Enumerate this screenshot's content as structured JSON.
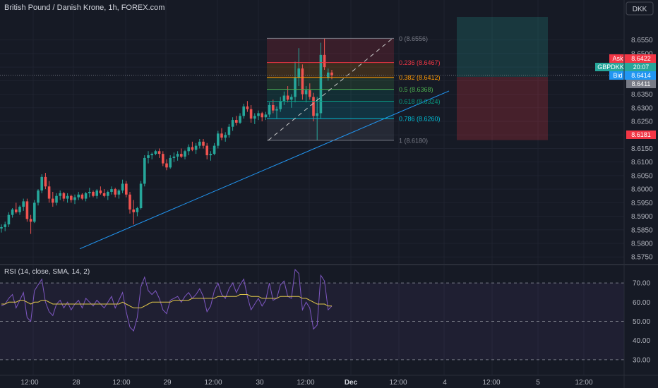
{
  "header": {
    "title": "British Pound / Danish Krone, 1h, FOREX.com"
  },
  "currency_button": "DKK",
  "price_axis": {
    "ticks": [
      "8.6550",
      "8.6500",
      "8.6450",
      "8.6400",
      "8.6350",
      "8.6300",
      "8.6250",
      "8.6200",
      "8.6150",
      "8.6100",
      "8.6050",
      "8.6000",
      "8.5950",
      "8.5900",
      "8.5850",
      "8.5800",
      "8.5750"
    ],
    "tick_values": [
      8.655,
      8.65,
      8.645,
      8.64,
      8.635,
      8.63,
      8.625,
      8.62,
      8.615,
      8.61,
      8.605,
      8.6,
      8.595,
      8.59,
      8.585,
      8.58,
      8.575
    ],
    "ylim": [
      8.5735,
      8.6635
    ]
  },
  "labels": {
    "ask": {
      "text": "Ask",
      "value": "8.6422",
      "color": "#f23645"
    },
    "symbol": {
      "text": "GBPDKK",
      "value": "20:07",
      "color": "#26a69a"
    },
    "bid": {
      "text": "Bid",
      "value": "8.6414",
      "color": "#2196f3"
    },
    "last": {
      "value": "8.6411",
      "color": "#787b86"
    },
    "stop": {
      "value": "8.6181",
      "color": "#f23645"
    }
  },
  "fib": {
    "levels": [
      {
        "ratio": "0",
        "price": 8.6556,
        "label": "0 (8.6556)",
        "color": "#787b86"
      },
      {
        "ratio": "0.236",
        "price": 8.6467,
        "label": "0.236 (8.6467)",
        "color": "#f23645"
      },
      {
        "ratio": "0.382",
        "price": 8.6412,
        "label": "0.382 (8.6412)",
        "color": "#ff9800"
      },
      {
        "ratio": "0.5",
        "price": 8.6368,
        "label": "0.5 (8.6368)",
        "color": "#4caf50"
      },
      {
        "ratio": "0.618",
        "price": 8.6324,
        "label": "0.618 (8.6324)",
        "color": "#089981"
      },
      {
        "ratio": "0.786",
        "price": 8.626,
        "label": "0.786 (8.6260)",
        "color": "#00bcd4"
      },
      {
        "ratio": "1",
        "price": 8.618,
        "label": "1 (8.6180)",
        "color": "#787b86"
      }
    ]
  },
  "position": {
    "entry": 8.6414,
    "target": 8.6635,
    "stop": 8.6181,
    "profit_color": "#26a69a",
    "loss_color": "#f23645"
  },
  "rsi": {
    "title": "RSI (14, close, SMA, 14, 2)",
    "ticks": [
      "70.00",
      "60.00",
      "50.00",
      "40.00",
      "30.00"
    ],
    "tick_values": [
      70,
      60,
      50,
      40,
      30
    ],
    "ylim": [
      27,
      73
    ]
  },
  "time_axis": {
    "labels": [
      "12:00",
      "28",
      "12:00",
      "29",
      "12:00",
      "30",
      "12:00",
      "Dec",
      "12:00",
      "4",
      "12:00",
      "5",
      "12:00"
    ],
    "bold": [
      false,
      false,
      false,
      false,
      false,
      false,
      false,
      true,
      false,
      false,
      false,
      false,
      false
    ]
  },
  "colors": {
    "up": "#26a69a",
    "down": "#ef5350",
    "trendline": "#2196f3",
    "rsi": "#7e57c2",
    "rsi_ma": "#e2c84a",
    "background": "#161a25",
    "grid": "#1e222d"
  },
  "chart_data": {
    "type": "candlestick",
    "title": "British Pound / Danish Krone, 1h, FOREX.com",
    "ylim": [
      8.5735,
      8.6635
    ],
    "candles": [
      {
        "o": 8.5855,
        "h": 8.587,
        "l": 8.584,
        "c": 8.586
      },
      {
        "o": 8.586,
        "h": 8.588,
        "l": 8.5845,
        "c": 8.587
      },
      {
        "o": 8.587,
        "h": 8.5915,
        "l": 8.586,
        "c": 8.5905
      },
      {
        "o": 8.5905,
        "h": 8.593,
        "l": 8.5895,
        "c": 8.5925
      },
      {
        "o": 8.5925,
        "h": 8.595,
        "l": 8.591,
        "c": 8.5915
      },
      {
        "o": 8.5915,
        "h": 8.594,
        "l": 8.5905,
        "c": 8.5935
      },
      {
        "o": 8.5935,
        "h": 8.5965,
        "l": 8.592,
        "c": 8.5955
      },
      {
        "o": 8.5955,
        "h": 8.5965,
        "l": 8.588,
        "c": 8.589
      },
      {
        "o": 8.589,
        "h": 8.5905,
        "l": 8.5835,
        "c": 8.588
      },
      {
        "o": 8.588,
        "h": 8.596,
        "l": 8.5875,
        "c": 8.595
      },
      {
        "o": 8.595,
        "h": 8.6,
        "l": 8.594,
        "c": 8.5995
      },
      {
        "o": 8.5995,
        "h": 8.6055,
        "l": 8.5985,
        "c": 8.6045
      },
      {
        "o": 8.6045,
        "h": 8.606,
        "l": 8.6,
        "c": 8.601
      },
      {
        "o": 8.601,
        "h": 8.603,
        "l": 8.595,
        "c": 8.5965
      },
      {
        "o": 8.5965,
        "h": 8.599,
        "l": 8.5935,
        "c": 8.595
      },
      {
        "o": 8.595,
        "h": 8.5985,
        "l": 8.594,
        "c": 8.5975
      },
      {
        "o": 8.5975,
        "h": 8.5995,
        "l": 8.596,
        "c": 8.5985
      },
      {
        "o": 8.5985,
        "h": 8.599,
        "l": 8.5955,
        "c": 8.5965
      },
      {
        "o": 8.5965,
        "h": 8.5985,
        "l": 8.595,
        "c": 8.5975
      },
      {
        "o": 8.5975,
        "h": 8.598,
        "l": 8.595,
        "c": 8.596
      },
      {
        "o": 8.596,
        "h": 8.598,
        "l": 8.5945,
        "c": 8.597
      },
      {
        "o": 8.597,
        "h": 8.599,
        "l": 8.596,
        "c": 8.598
      },
      {
        "o": 8.598,
        "h": 8.5985,
        "l": 8.596,
        "c": 8.5965
      },
      {
        "o": 8.5965,
        "h": 8.599,
        "l": 8.5955,
        "c": 8.5985
      },
      {
        "o": 8.5985,
        "h": 8.6005,
        "l": 8.597,
        "c": 8.599
      },
      {
        "o": 8.599,
        "h": 8.5995,
        "l": 8.597,
        "c": 8.5975
      },
      {
        "o": 8.5975,
        "h": 8.6,
        "l": 8.5965,
        "c": 8.5995
      },
      {
        "o": 8.5995,
        "h": 8.601,
        "l": 8.598,
        "c": 8.5985
      },
      {
        "o": 8.5985,
        "h": 8.6,
        "l": 8.597,
        "c": 8.5975
      },
      {
        "o": 8.5975,
        "h": 8.5995,
        "l": 8.596,
        "c": 8.599
      },
      {
        "o": 8.599,
        "h": 8.601,
        "l": 8.598,
        "c": 8.6
      },
      {
        "o": 8.6,
        "h": 8.6005,
        "l": 8.597,
        "c": 8.598
      },
      {
        "o": 8.598,
        "h": 8.6,
        "l": 8.5965,
        "c": 8.5995
      },
      {
        "o": 8.5995,
        "h": 8.6035,
        "l": 8.5985,
        "c": 8.602
      },
      {
        "o": 8.602,
        "h": 8.603,
        "l": 8.597,
        "c": 8.598
      },
      {
        "o": 8.598,
        "h": 8.599,
        "l": 8.591,
        "c": 8.5925
      },
      {
        "o": 8.5925,
        "h": 8.596,
        "l": 8.587,
        "c": 8.5915
      },
      {
        "o": 8.5915,
        "h": 8.5935,
        "l": 8.59,
        "c": 8.593
      },
      {
        "o": 8.593,
        "h": 8.603,
        "l": 8.5925,
        "c": 8.602
      },
      {
        "o": 8.602,
        "h": 8.6125,
        "l": 8.601,
        "c": 8.6115
      },
      {
        "o": 8.6115,
        "h": 8.614,
        "l": 8.6095,
        "c": 8.6125
      },
      {
        "o": 8.6125,
        "h": 8.6135,
        "l": 8.611,
        "c": 8.613
      },
      {
        "o": 8.613,
        "h": 8.6145,
        "l": 8.6125,
        "c": 8.614
      },
      {
        "o": 8.614,
        "h": 8.615,
        "l": 8.6115,
        "c": 8.613
      },
      {
        "o": 8.613,
        "h": 8.614,
        "l": 8.6085,
        "c": 8.6095
      },
      {
        "o": 8.6095,
        "h": 8.611,
        "l": 8.607,
        "c": 8.608
      },
      {
        "o": 8.608,
        "h": 8.6125,
        "l": 8.6075,
        "c": 8.6115
      },
      {
        "o": 8.6115,
        "h": 8.6135,
        "l": 8.61,
        "c": 8.612
      },
      {
        "o": 8.612,
        "h": 8.614,
        "l": 8.6105,
        "c": 8.613
      },
      {
        "o": 8.613,
        "h": 8.615,
        "l": 8.6115,
        "c": 8.612
      },
      {
        "o": 8.612,
        "h": 8.6145,
        "l": 8.611,
        "c": 8.614
      },
      {
        "o": 8.614,
        "h": 8.6165,
        "l": 8.6125,
        "c": 8.6155
      },
      {
        "o": 8.6155,
        "h": 8.6175,
        "l": 8.614,
        "c": 8.6145
      },
      {
        "o": 8.6145,
        "h": 8.617,
        "l": 8.613,
        "c": 8.616
      },
      {
        "o": 8.616,
        "h": 8.6185,
        "l": 8.615,
        "c": 8.6175
      },
      {
        "o": 8.6175,
        "h": 8.6185,
        "l": 8.615,
        "c": 8.616
      },
      {
        "o": 8.616,
        "h": 8.617,
        "l": 8.611,
        "c": 8.6125
      },
      {
        "o": 8.6125,
        "h": 8.614,
        "l": 8.6105,
        "c": 8.613
      },
      {
        "o": 8.613,
        "h": 8.617,
        "l": 8.6125,
        "c": 8.616
      },
      {
        "o": 8.616,
        "h": 8.6215,
        "l": 8.615,
        "c": 8.6205
      },
      {
        "o": 8.6205,
        "h": 8.6225,
        "l": 8.618,
        "c": 8.619
      },
      {
        "o": 8.619,
        "h": 8.621,
        "l": 8.6175,
        "c": 8.62
      },
      {
        "o": 8.62,
        "h": 8.624,
        "l": 8.619,
        "c": 8.623
      },
      {
        "o": 8.623,
        "h": 8.6265,
        "l": 8.6215,
        "c": 8.6255
      },
      {
        "o": 8.6255,
        "h": 8.627,
        "l": 8.6235,
        "c": 8.6245
      },
      {
        "o": 8.6245,
        "h": 8.628,
        "l": 8.624,
        "c": 8.627
      },
      {
        "o": 8.627,
        "h": 8.6315,
        "l": 8.626,
        "c": 8.6305
      },
      {
        "o": 8.6305,
        "h": 8.6325,
        "l": 8.6285,
        "c": 8.6295
      },
      {
        "o": 8.6295,
        "h": 8.631,
        "l": 8.6245,
        "c": 8.626
      },
      {
        "o": 8.626,
        "h": 8.628,
        "l": 8.624,
        "c": 8.627
      },
      {
        "o": 8.627,
        "h": 8.629,
        "l": 8.6255,
        "c": 8.628
      },
      {
        "o": 8.628,
        "h": 8.6285,
        "l": 8.625,
        "c": 8.6265
      },
      {
        "o": 8.6265,
        "h": 8.6285,
        "l": 8.6255,
        "c": 8.6275
      },
      {
        "o": 8.6275,
        "h": 8.632,
        "l": 8.6265,
        "c": 8.631
      },
      {
        "o": 8.631,
        "h": 8.633,
        "l": 8.628,
        "c": 8.629
      },
      {
        "o": 8.629,
        "h": 8.6305,
        "l": 8.626,
        "c": 8.6295
      },
      {
        "o": 8.6295,
        "h": 8.634,
        "l": 8.6285,
        "c": 8.6325
      },
      {
        "o": 8.6325,
        "h": 8.636,
        "l": 8.631,
        "c": 8.6345
      },
      {
        "o": 8.6345,
        "h": 8.638,
        "l": 8.632,
        "c": 8.633
      },
      {
        "o": 8.633,
        "h": 8.635,
        "l": 8.63,
        "c": 8.634
      },
      {
        "o": 8.634,
        "h": 8.647,
        "l": 8.632,
        "c": 8.641
      },
      {
        "o": 8.641,
        "h": 8.652,
        "l": 8.638,
        "c": 8.6445
      },
      {
        "o": 8.6445,
        "h": 8.646,
        "l": 8.633,
        "c": 8.635
      },
      {
        "o": 8.635,
        "h": 8.638,
        "l": 8.632,
        "c": 8.6365
      },
      {
        "o": 8.6365,
        "h": 8.639,
        "l": 8.633,
        "c": 8.634
      },
      {
        "o": 8.634,
        "h": 8.6355,
        "l": 8.625,
        "c": 8.627
      },
      {
        "o": 8.627,
        "h": 8.634,
        "l": 8.618,
        "c": 8.628
      },
      {
        "o": 8.628,
        "h": 8.654,
        "l": 8.626,
        "c": 8.6495
      },
      {
        "o": 8.6495,
        "h": 8.6556,
        "l": 8.644,
        "c": 8.645
      },
      {
        "o": 8.641,
        "h": 8.6445,
        "l": 8.64,
        "c": 8.643
      },
      {
        "o": 8.643,
        "h": 8.644,
        "l": 8.6405,
        "c": 8.642
      }
    ],
    "rsi": [
      58,
      59,
      62,
      64,
      57,
      61,
      65,
      52,
      50,
      66,
      69,
      72,
      60,
      55,
      53,
      59,
      61,
      57,
      60,
      56,
      59,
      61,
      57,
      62,
      60,
      58,
      61,
      59,
      57,
      60,
      63,
      57,
      61,
      65,
      55,
      47,
      45,
      52,
      68,
      73,
      66,
      64,
      66,
      62,
      56,
      54,
      61,
      62,
      63,
      60,
      63,
      65,
      62,
      64,
      67,
      63,
      55,
      58,
      66,
      70,
      64,
      62,
      67,
      70,
      65,
      69,
      72,
      63,
      56,
      59,
      62,
      58,
      61,
      70,
      61,
      62,
      69,
      71,
      63,
      62,
      77,
      75,
      56,
      60,
      57,
      46,
      48,
      74,
      71,
      56,
      58
    ],
    "rsi_ma": [
      59,
      59,
      60,
      60,
      60,
      61,
      61,
      60,
      59,
      60,
      60,
      61,
      61,
      60,
      59,
      59,
      59,
      59,
      59,
      59,
      59,
      59,
      59,
      59,
      59,
      59,
      59,
      59,
      59,
      59,
      59,
      59,
      59,
      60,
      59,
      58,
      57,
      57,
      57,
      58,
      59,
      60,
      60,
      60,
      60,
      60,
      60,
      61,
      61,
      61,
      61,
      61,
      62,
      62,
      62,
      62,
      62,
      62,
      62,
      63,
      63,
      63,
      63,
      63,
      63,
      64,
      64,
      64,
      63,
      63,
      63,
      62,
      62,
      62,
      62,
      62,
      63,
      63,
      63,
      63,
      63,
      63,
      62,
      62,
      61,
      60,
      59,
      59,
      59,
      58,
      58
    ],
    "trendline": {
      "start": {
        "index": 15,
        "price": 8.578
      },
      "end": {
        "index": 120,
        "price": 8.6362
      }
    }
  }
}
